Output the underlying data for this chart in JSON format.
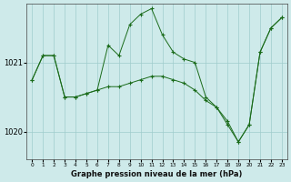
{
  "xlabel": "Graphe pression niveau de la mer (hPa)",
  "background_color": "#ceeaea",
  "plot_bg_color": "#ceeaea",
  "grid_color": "#a0cccc",
  "line_color": "#1a6b1a",
  "ylim_min": 1019.6,
  "ylim_max": 1021.85,
  "yticks": [
    1020,
    1021
  ],
  "series1_x": [
    0,
    1,
    2,
    3,
    4,
    5,
    6,
    7,
    8,
    9,
    10,
    11,
    12,
    13,
    14,
    15,
    16,
    17,
    18,
    19,
    20,
    21,
    22,
    23
  ],
  "series1_y": [
    1020.75,
    1021.1,
    1021.1,
    1020.5,
    1020.5,
    1020.55,
    1020.6,
    1021.25,
    1021.1,
    1021.55,
    1021.7,
    1021.78,
    1021.4,
    1021.15,
    1021.05,
    1021.0,
    1020.5,
    1020.35,
    1020.1,
    1019.85,
    1020.1,
    1021.15,
    1021.5,
    1021.65
  ],
  "series2_x": [
    0,
    1,
    2,
    3,
    4,
    5,
    6,
    7,
    8,
    9,
    10,
    11,
    12,
    13,
    14,
    15,
    16,
    17,
    18,
    19,
    20,
    21,
    22,
    23
  ],
  "series2_y": [
    1020.75,
    1021.1,
    1021.1,
    1020.5,
    1020.5,
    1020.55,
    1020.6,
    1020.65,
    1020.65,
    1020.7,
    1020.75,
    1020.8,
    1020.8,
    1020.75,
    1020.7,
    1020.6,
    1020.45,
    1020.35,
    1020.15,
    1019.85,
    1020.1,
    1021.15,
    1021.5,
    1021.65
  ]
}
